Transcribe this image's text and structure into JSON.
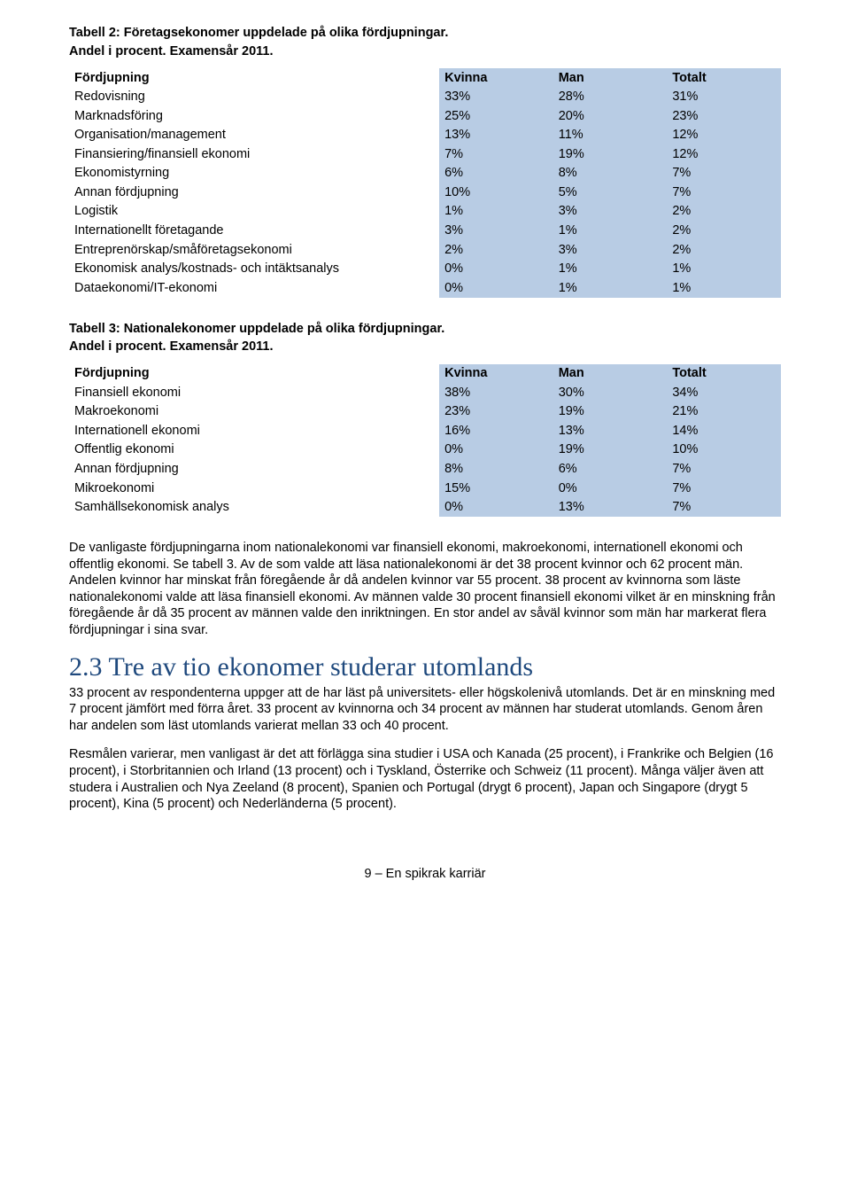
{
  "table2": {
    "title": "Tabell 2: Företagsekonomer uppdelade på olika fördjupningar.",
    "subtitle": "Andel i procent. Examensår 2011.",
    "header": {
      "c0": "Fördjupning",
      "c1": "Kvinna",
      "c2": "Man",
      "c3": "Totalt"
    },
    "rows": [
      {
        "c0": "Redovisning",
        "c1": "33%",
        "c2": "28%",
        "c3": "31%"
      },
      {
        "c0": "Marknadsföring",
        "c1": "25%",
        "c2": "20%",
        "c3": "23%"
      },
      {
        "c0": "Organisation/management",
        "c1": "13%",
        "c2": "11%",
        "c3": "12%"
      },
      {
        "c0": "Finansiering/finansiell ekonomi",
        "c1": "7%",
        "c2": "19%",
        "c3": "12%"
      },
      {
        "c0": "Ekonomistyrning",
        "c1": "6%",
        "c2": "8%",
        "c3": "7%"
      },
      {
        "c0": "Annan fördjupning",
        "c1": "10%",
        "c2": "5%",
        "c3": "7%"
      },
      {
        "c0": "Logistik",
        "c1": "1%",
        "c2": "3%",
        "c3": "2%"
      },
      {
        "c0": "Internationellt företagande",
        "c1": "3%",
        "c2": "1%",
        "c3": "2%"
      },
      {
        "c0": "Entreprenörskap/småföretagsekonomi",
        "c1": "2%",
        "c2": "3%",
        "c3": "2%"
      },
      {
        "c0": "Ekonomisk analys/kostnads- och intäktsanalys",
        "c1": "0%",
        "c2": "1%",
        "c3": "1%"
      },
      {
        "c0": "Dataekonomi/IT-ekonomi",
        "c1": "0%",
        "c2": "1%",
        "c3": "1%"
      }
    ],
    "colors": {
      "header_bg": "#b8cce4",
      "row_bg": "#ffffff",
      "value_bg": "#b8cce4"
    }
  },
  "table3": {
    "title": "Tabell 3: Nationalekonomer uppdelade på olika fördjupningar.",
    "subtitle": "Andel i procent.  Examensår 2011.",
    "header": {
      "c0": "Fördjupning",
      "c1": "Kvinna",
      "c2": "Man",
      "c3": "Totalt"
    },
    "rows": [
      {
        "c0": "Finansiell ekonomi",
        "c1": "38%",
        "c2": "30%",
        "c3": "34%"
      },
      {
        "c0": "Makroekonomi",
        "c1": "23%",
        "c2": "19%",
        "c3": "21%"
      },
      {
        "c0": "Internationell ekonomi",
        "c1": "16%",
        "c2": "13%",
        "c3": "14%"
      },
      {
        "c0": "Offentlig ekonomi",
        "c1": "0%",
        "c2": "19%",
        "c3": "10%"
      },
      {
        "c0": "Annan fördjupning",
        "c1": "8%",
        "c2": "6%",
        "c3": "7%"
      },
      {
        "c0": "Mikroekonomi",
        "c1": "15%",
        "c2": "0%",
        "c3": "7%"
      },
      {
        "c0": "Samhällsekonomisk analys",
        "c1": "0%",
        "c2": "13%",
        "c3": "7%"
      }
    ],
    "colors": {
      "header_bg": "#b8cce4",
      "row_bg": "#ffffff",
      "value_bg": "#b8cce4"
    }
  },
  "para1": "De vanligaste fördjupningarna inom nationalekonomi var finansiell ekonomi, makroekonomi, internationell ekonomi och offentlig ekonomi. Se tabell 3. Av de som valde att läsa nationalekonomi är det 38 procent kvinnor och 62 procent män. Andelen kvinnor har minskat från föregående år då andelen kvinnor var 55 procent. 38 procent av kvinnorna som läste nationalekonomi valde att läsa finansiell ekonomi. Av männen valde 30 procent finansiell ekonomi vilket är en minskning från föregående år då 35 procent av männen valde den inriktningen. En stor andel av såväl kvinnor som män har markerat flera fördjupningar i sina svar.",
  "section_heading": "2.3  Tre av tio ekonomer studerar utomlands",
  "para2": "33 procent av respondenterna uppger att de har läst på universitets- eller högskolenivå utomlands. Det är en minskning med 7 procent jämfört med förra året. 33 procent av kvinnorna och 34 procent av männen har studerat utomlands. Genom åren har andelen som läst utomlands varierat mellan 33 och 40 procent.",
  "para3": "Resmålen varierar, men vanligast är det att förlägga sina studier i USA och Kanada (25 procent), i Frankrike och Belgien (16 procent), i Storbritannien och Irland (13 procent) och i Tyskland, Österrike och Schweiz (11 procent). Många väljer även att studera i Australien och Nya Zeeland (8 procent), Spanien och Portugal (drygt 6 procent), Japan och Singapore (drygt 5 procent), Kina (5 procent) och Nederländerna (5 procent).",
  "footer": "9 – En spikrak karriär"
}
